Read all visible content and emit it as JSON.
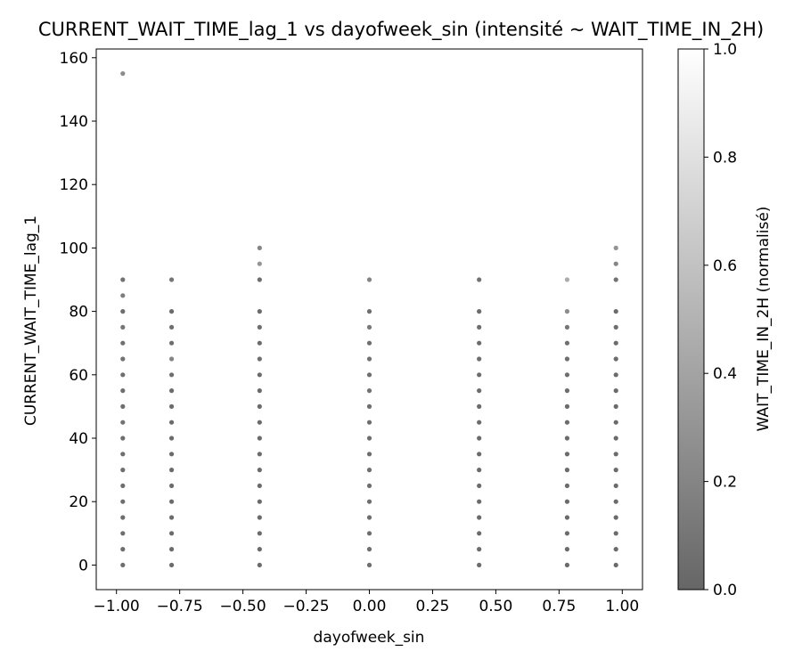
{
  "chart_data": {
    "type": "scatter",
    "title": "CURRENT_WAIT_TIME_lag_1 vs dayofweek_sin (intensité ~ WAIT_TIME_IN_2H)",
    "xlabel": "dayofweek_sin",
    "ylabel": "CURRENT_WAIT_TIME_lag_1",
    "xlim": [
      -1.08,
      1.08
    ],
    "ylim": [
      -7.75,
      162.75
    ],
    "x_ticks": [
      -1.0,
      -0.75,
      -0.5,
      -0.25,
      0.0,
      0.25,
      0.5,
      0.75,
      1.0
    ],
    "x_tick_labels": [
      "−1.00",
      "−0.75",
      "−0.50",
      "−0.25",
      "0.00",
      "0.25",
      "0.50",
      "0.75",
      "1.00"
    ],
    "y_ticks": [
      0,
      20,
      40,
      60,
      80,
      100,
      120,
      140,
      160
    ],
    "y_tick_labels": [
      "0",
      "20",
      "40",
      "60",
      "80",
      "100",
      "120",
      "140",
      "160"
    ],
    "grid": false,
    "colorbar": {
      "label": "WAIT_TIME_IN_2H (normalisé)",
      "range": [
        0.0,
        1.0
      ],
      "ticks": [
        0.0,
        0.2,
        0.4,
        0.6,
        0.8,
        1.0
      ],
      "tick_labels": [
        "0.0",
        "0.2",
        "0.4",
        "0.6",
        "0.8",
        "1.0"
      ],
      "colormap": "gray",
      "color_low": "#000000",
      "color_high": "#ffffff",
      "alpha": 0.6
    },
    "series": [
      {
        "x": -0.975,
        "points": [
          [
            0,
            0.05
          ],
          [
            5,
            0.05
          ],
          [
            10,
            0.05
          ],
          [
            15,
            0.05
          ],
          [
            20,
            0.05
          ],
          [
            25,
            0.05
          ],
          [
            30,
            0.05
          ],
          [
            35,
            0.05
          ],
          [
            40,
            0.05
          ],
          [
            45,
            0.08
          ],
          [
            50,
            0.05
          ],
          [
            55,
            0.06
          ],
          [
            60,
            0.06
          ],
          [
            65,
            0.08
          ],
          [
            70,
            0.06
          ],
          [
            75,
            0.1
          ],
          [
            80,
            0.05
          ],
          [
            85,
            0.15
          ],
          [
            90,
            0.08
          ],
          [
            155,
            0.25
          ]
        ]
      },
      {
        "x": -0.782,
        "points": [
          [
            0,
            0.03
          ],
          [
            5,
            0.03
          ],
          [
            10,
            0.03
          ],
          [
            15,
            0.03
          ],
          [
            20,
            0.03
          ],
          [
            25,
            0.03
          ],
          [
            30,
            0.03
          ],
          [
            35,
            0.03
          ],
          [
            40,
            0.03
          ],
          [
            45,
            0.03
          ],
          [
            50,
            0.03
          ],
          [
            55,
            0.04
          ],
          [
            60,
            0.05
          ],
          [
            65,
            0.2
          ],
          [
            70,
            0.05
          ],
          [
            75,
            0.06
          ],
          [
            80,
            0.03
          ],
          [
            90,
            0.1
          ]
        ]
      },
      {
        "x": -0.434,
        "points": [
          [
            0,
            0.03
          ],
          [
            5,
            0.03
          ],
          [
            10,
            0.03
          ],
          [
            15,
            0.03
          ],
          [
            20,
            0.03
          ],
          [
            25,
            0.03
          ],
          [
            30,
            0.03
          ],
          [
            35,
            0.03
          ],
          [
            40,
            0.03
          ],
          [
            45,
            0.03
          ],
          [
            50,
            0.03
          ],
          [
            55,
            0.03
          ],
          [
            60,
            0.03
          ],
          [
            65,
            0.05
          ],
          [
            70,
            0.04
          ],
          [
            75,
            0.05
          ],
          [
            80,
            0.03
          ],
          [
            90,
            0.05
          ],
          [
            95,
            0.3
          ],
          [
            100,
            0.2
          ]
        ]
      },
      {
        "x": 0.0,
        "points": [
          [
            0,
            0.05
          ],
          [
            5,
            0.05
          ],
          [
            10,
            0.05
          ],
          [
            15,
            0.05
          ],
          [
            20,
            0.05
          ],
          [
            25,
            0.05
          ],
          [
            30,
            0.05
          ],
          [
            35,
            0.05
          ],
          [
            40,
            0.05
          ],
          [
            45,
            0.05
          ],
          [
            50,
            0.05
          ],
          [
            55,
            0.08
          ],
          [
            60,
            0.05
          ],
          [
            65,
            0.08
          ],
          [
            70,
            0.06
          ],
          [
            75,
            0.12
          ],
          [
            80,
            0.06
          ],
          [
            90,
            0.2
          ]
        ]
      },
      {
        "x": 0.434,
        "points": [
          [
            0,
            0.03
          ],
          [
            5,
            0.03
          ],
          [
            10,
            0.03
          ],
          [
            15,
            0.03
          ],
          [
            20,
            0.03
          ],
          [
            25,
            0.03
          ],
          [
            30,
            0.03
          ],
          [
            35,
            0.03
          ],
          [
            40,
            0.03
          ],
          [
            45,
            0.03
          ],
          [
            50,
            0.03
          ],
          [
            55,
            0.04
          ],
          [
            60,
            0.04
          ],
          [
            65,
            0.05
          ],
          [
            70,
            0.04
          ],
          [
            75,
            0.05
          ],
          [
            80,
            0.04
          ],
          [
            90,
            0.08
          ]
        ]
      },
      {
        "x": 0.782,
        "points": [
          [
            0,
            0.03
          ],
          [
            5,
            0.03
          ],
          [
            10,
            0.03
          ],
          [
            15,
            0.03
          ],
          [
            20,
            0.03
          ],
          [
            25,
            0.03
          ],
          [
            30,
            0.03
          ],
          [
            35,
            0.03
          ],
          [
            40,
            0.04
          ],
          [
            45,
            0.04
          ],
          [
            50,
            0.04
          ],
          [
            55,
            0.05
          ],
          [
            60,
            0.05
          ],
          [
            65,
            0.06
          ],
          [
            70,
            0.06
          ],
          [
            75,
            0.1
          ],
          [
            80,
            0.25
          ],
          [
            90,
            0.45
          ]
        ]
      },
      {
        "x": 0.975,
        "points": [
          [
            0,
            0.03
          ],
          [
            5,
            0.03
          ],
          [
            10,
            0.03
          ],
          [
            15,
            0.03
          ],
          [
            20,
            0.03
          ],
          [
            25,
            0.03
          ],
          [
            30,
            0.03
          ],
          [
            35,
            0.03
          ],
          [
            40,
            0.03
          ],
          [
            45,
            0.03
          ],
          [
            50,
            0.03
          ],
          [
            55,
            0.03
          ],
          [
            60,
            0.03
          ],
          [
            65,
            0.04
          ],
          [
            70,
            0.03
          ],
          [
            75,
            0.05
          ],
          [
            80,
            0.03
          ],
          [
            90,
            0.08
          ],
          [
            95,
            0.2
          ],
          [
            100,
            0.3
          ]
        ]
      }
    ]
  }
}
